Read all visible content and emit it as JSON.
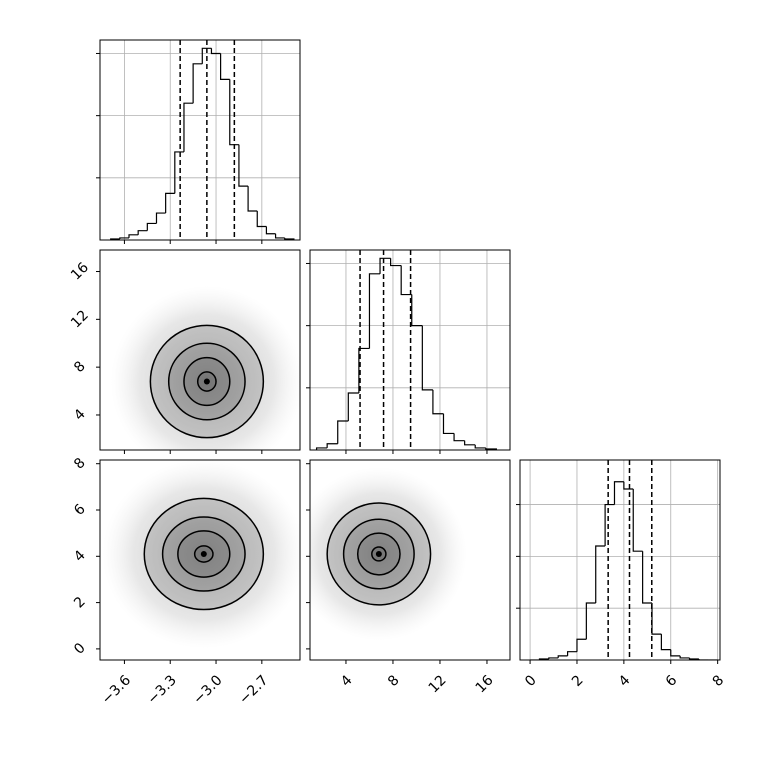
{
  "chart_data": [
    {
      "type": "histogram",
      "color": "#000000",
      "grid": true,
      "bins": [
        -3.69,
        -3.63,
        -3.57,
        -3.51,
        -3.45,
        -3.39,
        -3.33,
        -3.27,
        -3.21,
        -3.15,
        -3.09,
        -3.03,
        -2.97,
        -2.91,
        -2.85,
        -2.79,
        -2.73,
        -2.67,
        -2.61,
        -2.55,
        -2.49
      ],
      "counts": [
        1,
        2,
        5,
        9,
        16,
        26,
        45,
        85,
        132,
        170,
        185,
        180,
        155,
        92,
        52,
        28,
        13,
        6,
        2,
        1
      ],
      "quantiles": [
        -3.235,
        -3.06,
        -2.88
      ],
      "xlim": [
        -3.76,
        -2.45
      ],
      "xticks": [
        {
          "value": -3.6,
          "label": "−3.6"
        },
        {
          "value": -3.3,
          "label": "−3.3"
        },
        {
          "value": -3.0,
          "label": "−3.0"
        },
        {
          "value": -2.7,
          "label": "−2.7"
        }
      ],
      "ylim": [
        0,
        193
      ],
      "yticks": [
        60,
        120,
        180
      ]
    },
    {
      "type": "contour",
      "color": "#000000",
      "shade": "#444444",
      "center": [
        -3.06,
        6.8
      ],
      "contours": [
        [
          0.37,
          4.7
        ],
        [
          0.25,
          3.2
        ],
        [
          0.15,
          2.0
        ],
        [
          0.06,
          0.8
        ]
      ],
      "xlim": [
        -3.76,
        -2.45
      ],
      "xticks": [
        {
          "value": -3.6,
          "label": "−3.6"
        },
        {
          "value": -3.3,
          "label": "−3.3"
        },
        {
          "value": -3.0,
          "label": "−3.0"
        },
        {
          "value": -2.7,
          "label": "−2.7"
        }
      ],
      "ylim": [
        1.07,
        17.8
      ],
      "yticks": [
        4,
        8,
        12,
        16
      ],
      "ytick_labels": true
    },
    {
      "type": "histogram",
      "color": "#000000",
      "grid": true,
      "bins": [
        1.5,
        2.4,
        3.3,
        4.2,
        5.1,
        6.0,
        6.9,
        7.8,
        8.7,
        9.6,
        10.5,
        11.4,
        12.3,
        13.2,
        14.1,
        15.0,
        15.9,
        16.8
      ],
      "counts": [
        2,
        6,
        28,
        55,
        98,
        170,
        185,
        178,
        150,
        120,
        58,
        35,
        16,
        9,
        5,
        2,
        1
      ],
      "quantiles": [
        5.2,
        7.2,
        9.5
      ],
      "xlim": [
        0.94,
        17.96
      ],
      "xticks": [
        4,
        8,
        12,
        16
      ],
      "ylim": [
        0,
        193
      ],
      "yticks": [
        60,
        120,
        180
      ]
    },
    {
      "type": "contour",
      "color": "#000000",
      "shade": "#444444",
      "center": [
        -3.08,
        4.1
      ],
      "contours": [
        [
          0.39,
          2.4
        ],
        [
          0.27,
          1.6
        ],
        [
          0.17,
          1.0
        ],
        [
          0.06,
          0.35
        ]
      ],
      "xlim": [
        -3.76,
        -2.45
      ],
      "xticks": [
        {
          "value": -3.6,
          "label": "−3.6"
        },
        {
          "value": -3.3,
          "label": "−3.3"
        },
        {
          "value": -3.0,
          "label": "−3.0"
        },
        {
          "value": -2.7,
          "label": "−2.7"
        }
      ],
      "ylim": [
        -0.48,
        8.16
      ],
      "yticks": [
        0,
        2,
        4,
        6,
        8
      ],
      "xtick_labels": true,
      "ytick_labels": true
    },
    {
      "type": "contour",
      "color": "#000000",
      "shade": "#444444",
      "center": [
        6.8,
        4.1
      ],
      "contours": [
        [
          4.4,
          2.2
        ],
        [
          3.0,
          1.5
        ],
        [
          1.8,
          0.9
        ],
        [
          0.6,
          0.3
        ]
      ],
      "xlim": [
        0.94,
        17.96
      ],
      "xticks": [
        4,
        8,
        12,
        16
      ],
      "ylim": [
        -0.48,
        8.16
      ],
      "yticks": [
        0,
        2,
        4,
        6,
        8
      ],
      "xtick_labels": true
    },
    {
      "type": "histogram",
      "color": "#000000",
      "grid": true,
      "bins": [
        0,
        0.4,
        0.8,
        1.2,
        1.6,
        2.0,
        2.4,
        2.8,
        3.2,
        3.6,
        4.0,
        4.4,
        4.8,
        5.2,
        5.6,
        6.0,
        6.4,
        6.8,
        7.2,
        7.6,
        8.0
      ],
      "counts": [
        0,
        1,
        2,
        4,
        8,
        20,
        55,
        110,
        150,
        172,
        165,
        105,
        55,
        25,
        10,
        4,
        2,
        1,
        0,
        0
      ],
      "quantiles": [
        3.33,
        4.24,
        5.19
      ],
      "xlim": [
        -0.43,
        8.1
      ],
      "xticks": [
        0,
        2,
        4,
        6,
        8
      ],
      "ylim": [
        0,
        193
      ],
      "yticks": [
        50,
        100,
        150
      ],
      "xtick_labels": true
    }
  ]
}
